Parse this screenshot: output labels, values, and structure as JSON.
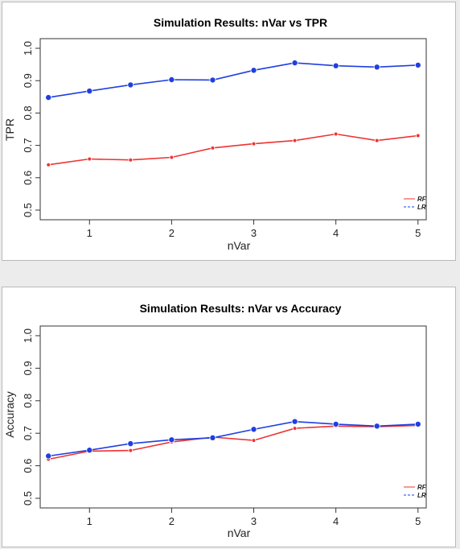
{
  "chart_data": [
    {
      "type": "line",
      "title": "Simulation Results: nVar vs TPR",
      "xlabel": "nVar",
      "ylabel": "TPR",
      "x": [
        0.5,
        1,
        1.5,
        2,
        2.5,
        3,
        3.5,
        4,
        4.5,
        5
      ],
      "xticks": [
        "1",
        "2",
        "3",
        "4",
        "5"
      ],
      "yticks": [
        "0.5",
        "0.6",
        "0.7",
        "0.8",
        "0.9",
        "1.0"
      ],
      "ylim": [
        0.5,
        1.0
      ],
      "series": [
        {
          "name": "RF",
          "color": "#ee3333",
          "values": [
            0.64,
            0.658,
            0.655,
            0.663,
            0.692,
            0.705,
            0.715,
            0.735,
            0.715,
            0.73
          ]
        },
        {
          "name": "LR",
          "color": "#1f3fe0",
          "values": [
            0.848,
            0.868,
            0.887,
            0.903,
            0.902,
            0.932,
            0.955,
            0.946,
            0.942,
            0.948
          ]
        }
      ],
      "legend": "bottom-right",
      "grid": false
    },
    {
      "type": "line",
      "title": "Simulation Results: nVar vs Accuracy",
      "xlabel": "nVar",
      "ylabel": "Accuracy",
      "x": [
        0.5,
        1,
        1.5,
        2,
        2.5,
        3,
        3.5,
        4,
        4.5,
        5
      ],
      "xticks": [
        "1",
        "2",
        "3",
        "4",
        "5"
      ],
      "yticks": [
        "0.5",
        "0.6",
        "0.7",
        "0.8",
        "0.9",
        "1.0"
      ],
      "ylim": [
        0.5,
        1.0
      ],
      "series": [
        {
          "name": "RF",
          "color": "#ee3333",
          "values": [
            0.62,
            0.645,
            0.647,
            0.673,
            0.688,
            0.678,
            0.715,
            0.722,
            0.72,
            0.724
          ]
        },
        {
          "name": "LR",
          "color": "#1f3fe0",
          "values": [
            0.63,
            0.648,
            0.668,
            0.68,
            0.686,
            0.712,
            0.736,
            0.728,
            0.722,
            0.728
          ]
        }
      ],
      "legend": "bottom-right",
      "grid": false
    }
  ]
}
